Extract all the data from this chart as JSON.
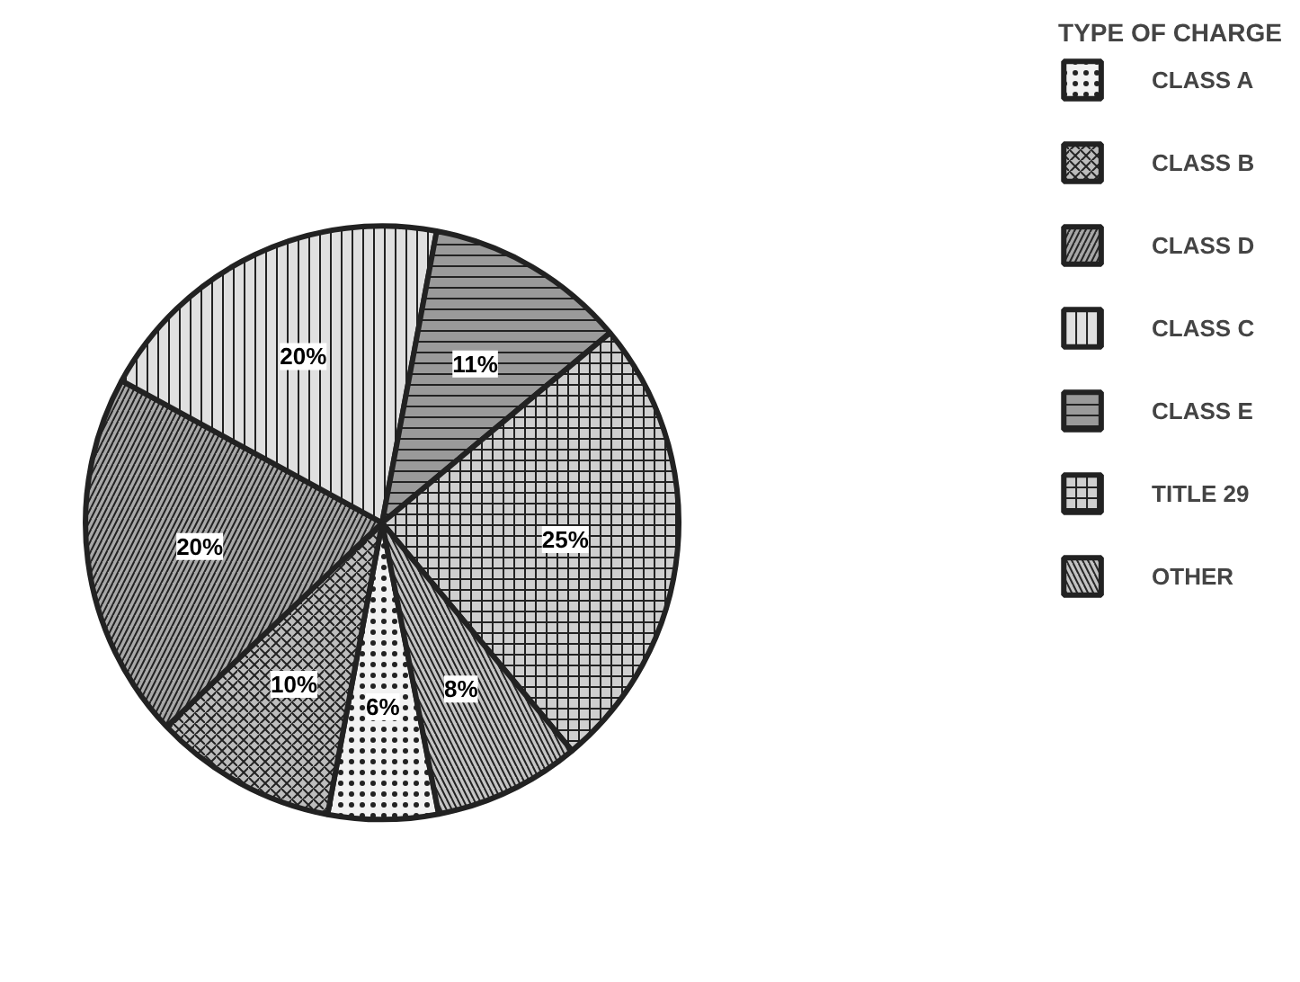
{
  "chart_data": {
    "type": "pie",
    "legend_title": "TYPE OF CHARGE",
    "legend": "right",
    "categories": [
      "CLASS A",
      "CLASS B",
      "CLASS D",
      "CLASS C",
      "CLASS E",
      "TITLE 29",
      "OTHER"
    ],
    "values": [
      6,
      10,
      20,
      20,
      11,
      25,
      8
    ],
    "value_labels": [
      "6%",
      "10%",
      "20%",
      "20%",
      "11%",
      "25%",
      "8%"
    ],
    "colors": [
      "#f2f2f2",
      "#bdbdbd",
      "#a8a8a8",
      "#e0e0e0",
      "#9a9a9a",
      "#cfcfcf",
      "#c4c4c4"
    ]
  }
}
